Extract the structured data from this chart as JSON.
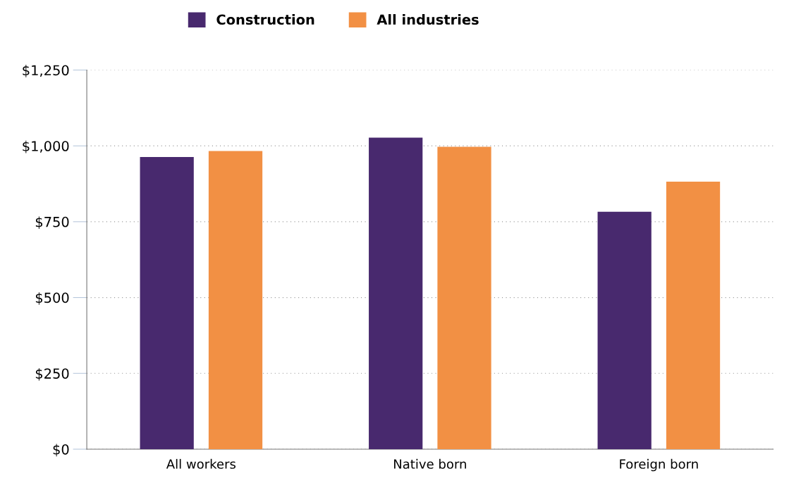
{
  "chart_data": {
    "type": "bar",
    "categories": [
      "All workers",
      "Native born",
      "Foreign born"
    ],
    "series": [
      {
        "name": "Construction",
        "color": "#48296e",
        "values": [
          963,
          1027,
          783
        ]
      },
      {
        "name": "All industries",
        "color": "#f29044",
        "values": [
          983,
          997,
          882
        ]
      }
    ],
    "ylim": [
      0,
      1250
    ],
    "yticks": [
      {
        "value": 0,
        "label": "$0"
      },
      {
        "value": 250,
        "label": "$250"
      },
      {
        "value": 500,
        "label": "$500"
      },
      {
        "value": 750,
        "label": "$750"
      },
      {
        "value": 1000,
        "label": "$1,000"
      },
      {
        "value": 1250,
        "label": "$1,250"
      }
    ],
    "grid": "y",
    "legend": "top"
  }
}
